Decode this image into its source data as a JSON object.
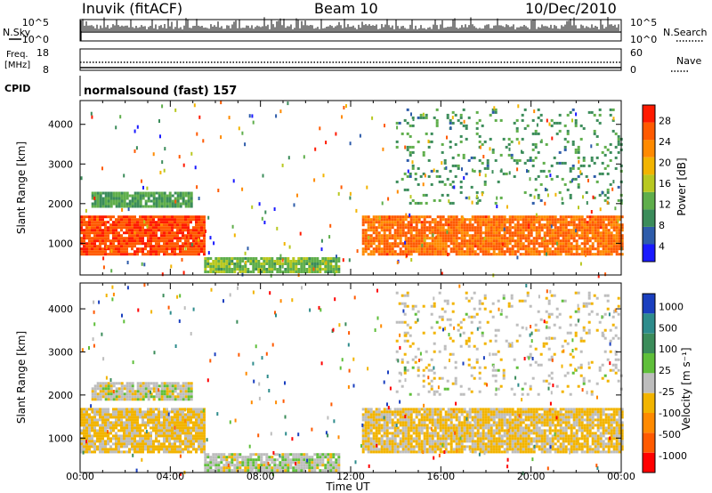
{
  "header": {
    "title": "Inuvik (fitACF)",
    "beam": "Beam 10",
    "date": "10/Dec/2010"
  },
  "top_panels": {
    "nsky": {
      "label": "N.Sky",
      "ticks": [
        "10^5",
        "10^0"
      ]
    },
    "nsearch": {
      "label": "N.Search",
      "ticks": [
        "10^5",
        "10^0"
      ]
    },
    "freq": {
      "label": "Freq.",
      "unit": "[MHz]",
      "ticks": [
        "18",
        "8"
      ]
    },
    "nave": {
      "label": "Nave",
      "ticks": [
        "60",
        "0"
      ]
    },
    "cpid": {
      "label": "CPID",
      "text": "normalsound (fast) 157"
    }
  },
  "colors": {
    "power": [
      "#1a1aff",
      "#2e5caa",
      "#3b8c5a",
      "#5fae4b",
      "#b8c820",
      "#f2b400",
      "#ff8a00",
      "#ff5a00",
      "#ff1a00"
    ],
    "velocity": [
      "#ff0000",
      "#ff5a00",
      "#ff8a00",
      "#f2b400",
      "#bdbdbd",
      "#5fbf3a",
      "#3b8c5a",
      "#2e8c8c",
      "#1a3fbf"
    ]
  },
  "chart_data": [
    {
      "type": "heatmap",
      "name": "power",
      "ylabel": "Slant Range [km]",
      "xlabel": "Time UT",
      "xlim": [
        0,
        24
      ],
      "ylim": [
        200,
        4600
      ],
      "y_ticks": [
        1000,
        2000,
        3000,
        4000
      ],
      "x_tick_labels": [
        "00:00",
        "04:00",
        "08:00",
        "12:00",
        "16:00",
        "20:00",
        "00:00"
      ],
      "colorbar": {
        "label": "Power [dB]",
        "ticks": [
          "28",
          "24",
          "20",
          "16",
          "12",
          "8",
          "4"
        ],
        "range": [
          0,
          30
        ]
      },
      "bands": [
        {
          "t0": 0.0,
          "t1": 5.5,
          "r0": 700,
          "r1": 1700,
          "value": 26
        },
        {
          "t0": 0.5,
          "t1": 5.0,
          "r0": 1900,
          "r1": 2300,
          "value": 10
        },
        {
          "t0": 5.5,
          "t1": 11.5,
          "r0": 250,
          "r1": 650,
          "value": 12
        },
        {
          "t0": 12.5,
          "t1": 24.0,
          "r0": 700,
          "r1": 1700,
          "value": 24
        },
        {
          "t0": 14.0,
          "t1": 24.0,
          "r0": 2000,
          "r1": 4400,
          "value": 9
        }
      ]
    },
    {
      "type": "heatmap",
      "name": "velocity",
      "ylabel": "Slant Range [km]",
      "xlabel": "Time UT",
      "xlim": [
        0,
        24
      ],
      "ylim": [
        200,
        4600
      ],
      "y_ticks": [
        1000,
        2000,
        3000,
        4000
      ],
      "x_tick_labels": [
        "00:00",
        "04:00",
        "08:00",
        "12:00",
        "16:00",
        "20:00",
        "00:00"
      ],
      "colorbar": {
        "label": "Velocity [m s⁻¹]",
        "ticks": [
          "1000",
          "500",
          "100",
          "25",
          "-25",
          "-100",
          "-500",
          "-1000"
        ],
        "range": [
          -1000,
          1000
        ]
      },
      "bands": [
        {
          "t0": 0.0,
          "t1": 5.5,
          "r0": 700,
          "r1": 1700,
          "value": -150
        },
        {
          "t0": 0.5,
          "t1": 5.0,
          "r0": 1900,
          "r1": 2300,
          "value": 0
        },
        {
          "t0": 5.5,
          "t1": 11.5,
          "r0": 250,
          "r1": 650,
          "value": 30
        },
        {
          "t0": 12.5,
          "t1": 24.0,
          "r0": 700,
          "r1": 1700,
          "value": -150
        },
        {
          "t0": 14.0,
          "t1": 24.0,
          "r0": 2000,
          "r1": 4400,
          "value": -50
        }
      ]
    }
  ]
}
